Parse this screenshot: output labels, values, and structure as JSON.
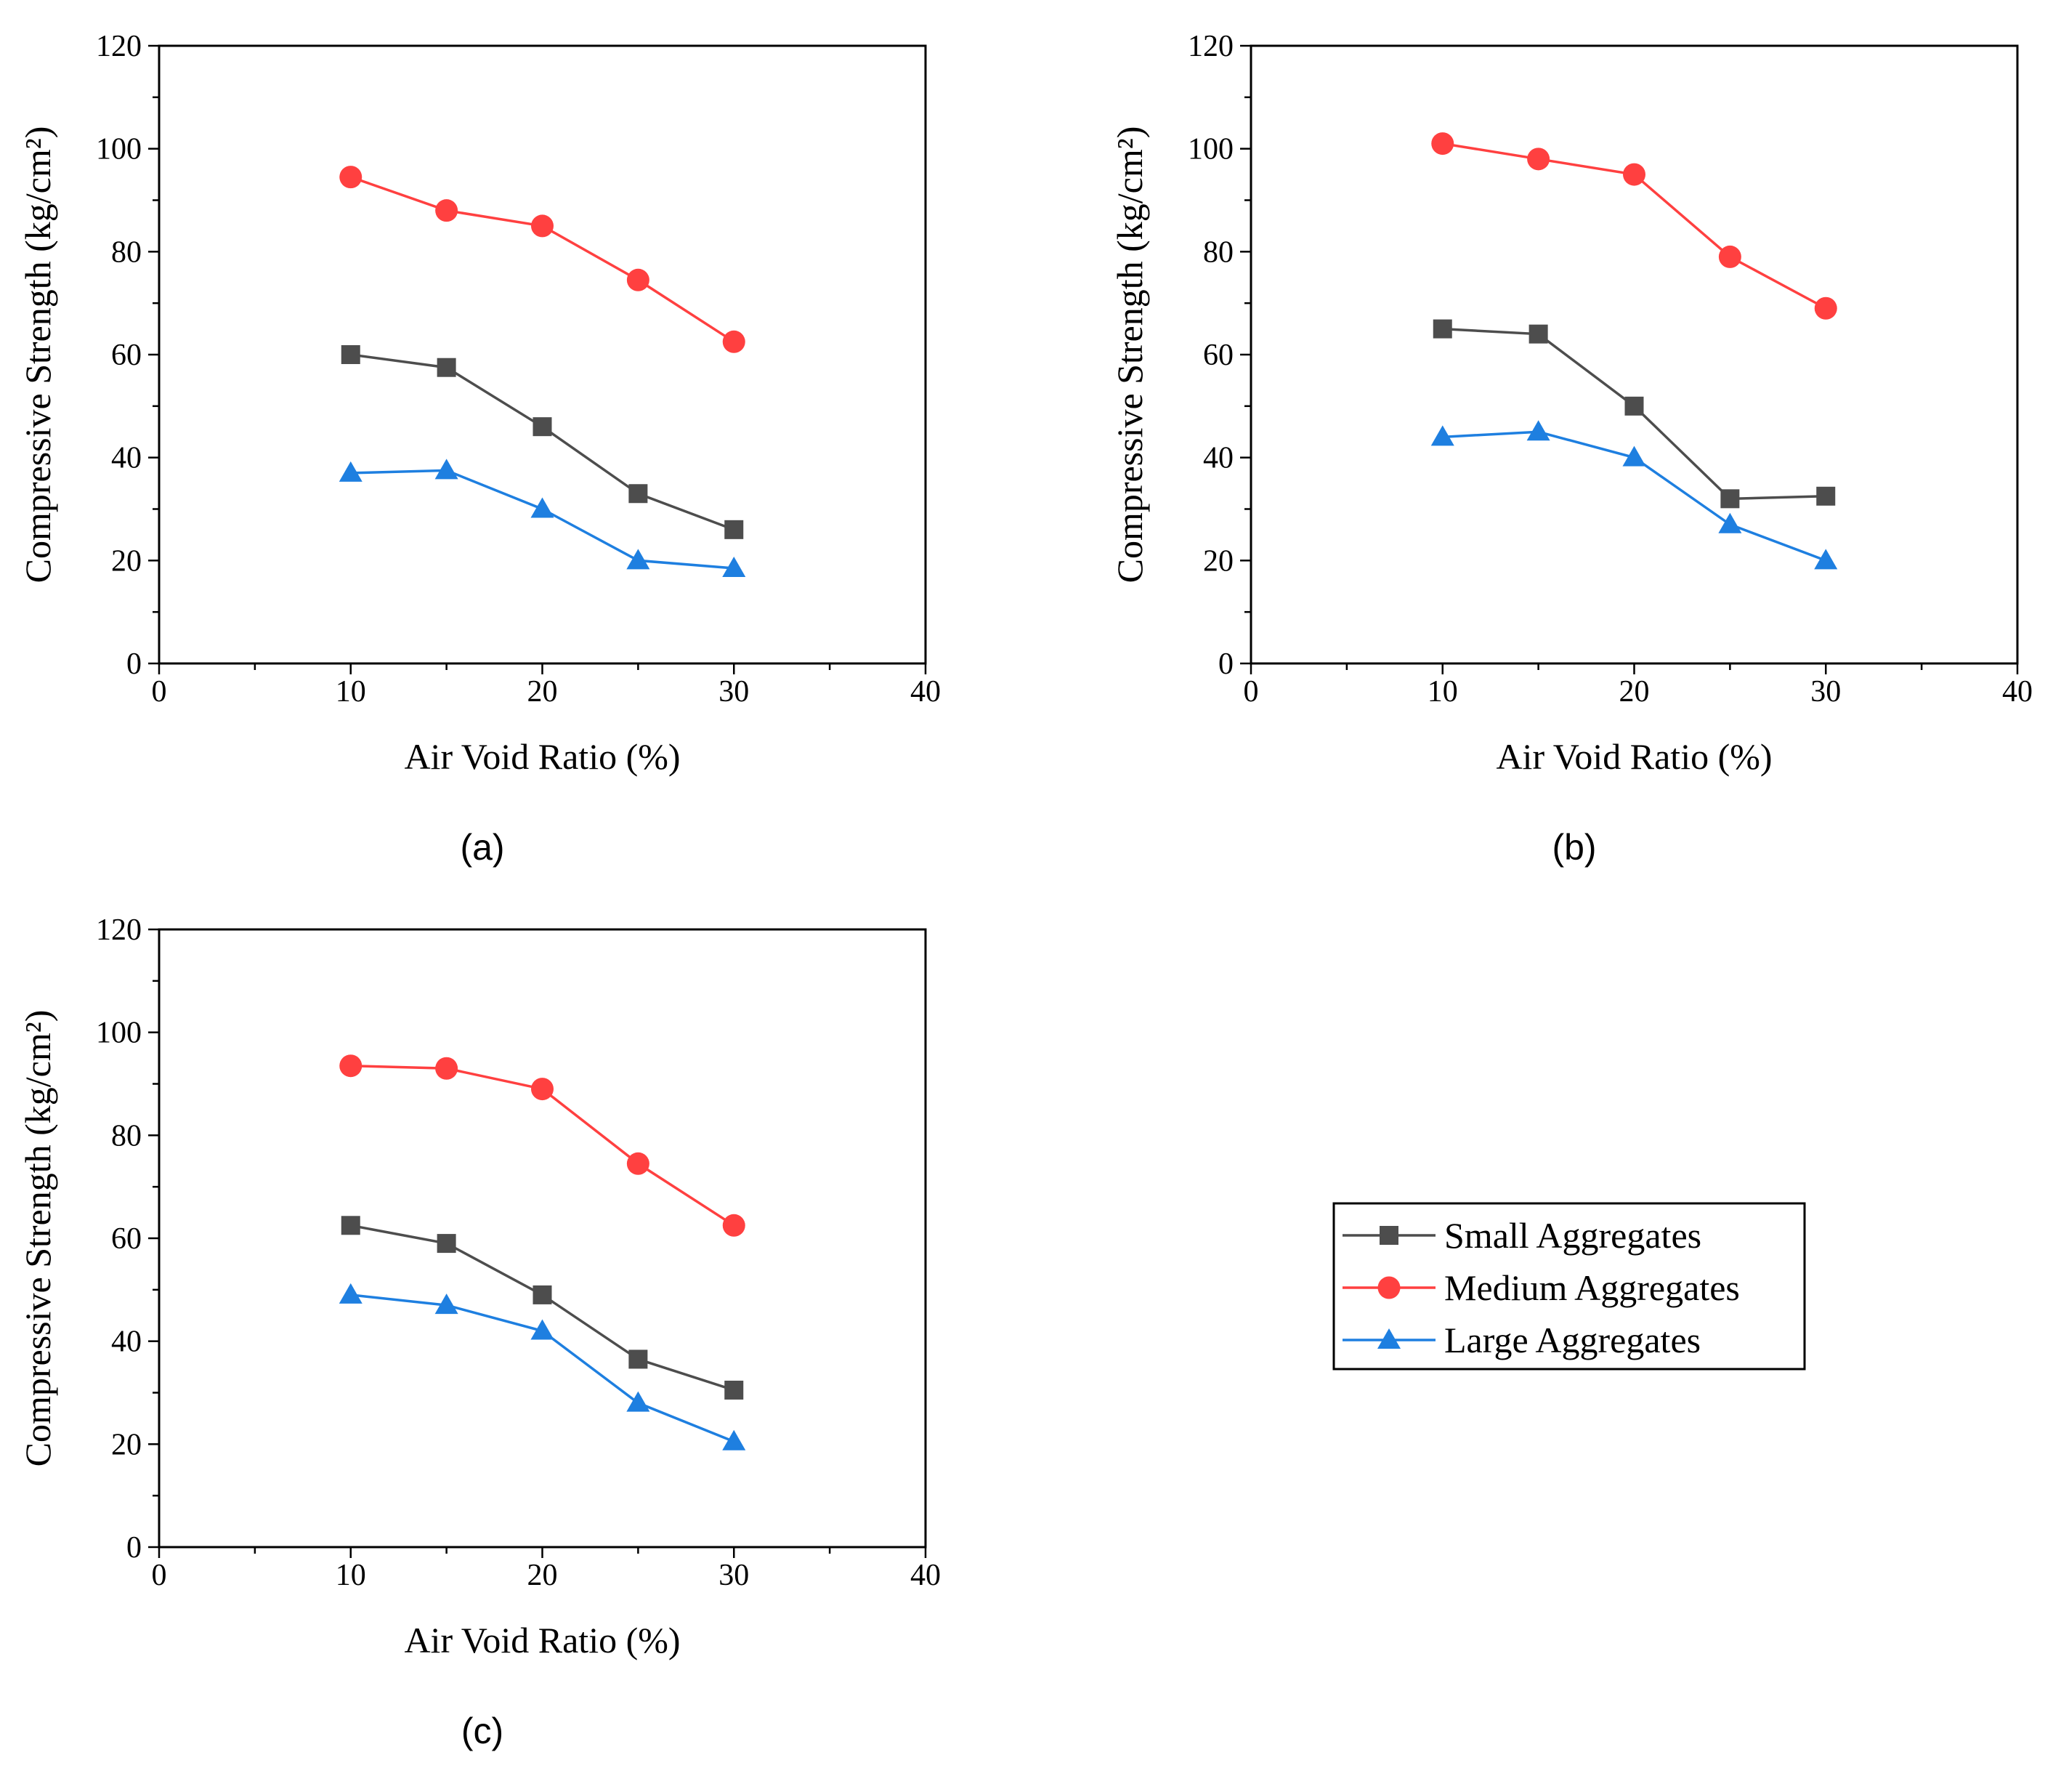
{
  "chart_data": [
    {
      "type": "line",
      "panel_label": "(a)",
      "xlabel": "Air Void Ratio (%)",
      "ylabel": "Compressive Strength (kg/cm²)",
      "xlim": [
        0,
        40
      ],
      "ylim": [
        0,
        120
      ],
      "x_ticks": [
        0,
        10,
        20,
        30,
        40
      ],
      "y_ticks": [
        0,
        20,
        40,
        60,
        80,
        100,
        120
      ],
      "grid": false,
      "x": [
        10,
        15,
        20,
        25,
        30
      ],
      "series": [
        {
          "name": "Small Aggregates",
          "marker": "square",
          "values": [
            60,
            57.5,
            46,
            33,
            26
          ]
        },
        {
          "name": "Medium Aggregates",
          "marker": "circle",
          "values": [
            94.5,
            88,
            85,
            74.5,
            62.5
          ]
        },
        {
          "name": "Large Aggregates",
          "marker": "triangle",
          "values": [
            37,
            37.5,
            30,
            20,
            18.5
          ]
        }
      ]
    },
    {
      "type": "line",
      "panel_label": "(b)",
      "xlabel": "Air Void Ratio (%)",
      "ylabel": "Compressive Strength (kg/cm²)",
      "xlim": [
        0,
        40
      ],
      "ylim": [
        0,
        120
      ],
      "x_ticks": [
        0,
        10,
        20,
        30,
        40
      ],
      "y_ticks": [
        0,
        20,
        40,
        60,
        80,
        100,
        120
      ],
      "grid": false,
      "x": [
        10,
        15,
        20,
        25,
        30
      ],
      "series": [
        {
          "name": "Small Aggregates",
          "marker": "square",
          "values": [
            65,
            64,
            50,
            32,
            32.5
          ]
        },
        {
          "name": "Medium Aggregates",
          "marker": "circle",
          "values": [
            101,
            98,
            95,
            79,
            69
          ]
        },
        {
          "name": "Large Aggregates",
          "marker": "triangle",
          "values": [
            44,
            45,
            40,
            27,
            20
          ]
        }
      ]
    },
    {
      "type": "line",
      "panel_label": "(c)",
      "xlabel": "Air Void Ratio (%)",
      "ylabel": "Compressive Strength (kg/cm²)",
      "xlim": [
        0,
        40
      ],
      "ylim": [
        0,
        120
      ],
      "x_ticks": [
        0,
        10,
        20,
        30,
        40
      ],
      "y_ticks": [
        0,
        20,
        40,
        60,
        80,
        100,
        120
      ],
      "grid": false,
      "x": [
        10,
        15,
        20,
        25,
        30
      ],
      "series": [
        {
          "name": "Small Aggregates",
          "marker": "square",
          "values": [
            62.5,
            59,
            49,
            36.5,
            30.5
          ]
        },
        {
          "name": "Medium Aggregates",
          "marker": "circle",
          "values": [
            93.5,
            93,
            89,
            74.5,
            62.5
          ]
        },
        {
          "name": "Large Aggregates",
          "marker": "triangle",
          "values": [
            49,
            47,
            42,
            28,
            20.5
          ]
        }
      ]
    }
  ],
  "legend": {
    "placement": "bottom-right",
    "entries": [
      "Small Aggregates",
      "Medium Aggregates",
      "Large Aggregates"
    ]
  },
  "colors": {
    "Small Aggregates": {
      "line": "#4d4d4d",
      "marker": "#4d4d4d"
    },
    "Medium Aggregates": {
      "line": "#ff4040",
      "marker": "#ff4040"
    },
    "Large Aggregates": {
      "line": "#1e7fe0",
      "marker": "#1e7fe0"
    }
  }
}
